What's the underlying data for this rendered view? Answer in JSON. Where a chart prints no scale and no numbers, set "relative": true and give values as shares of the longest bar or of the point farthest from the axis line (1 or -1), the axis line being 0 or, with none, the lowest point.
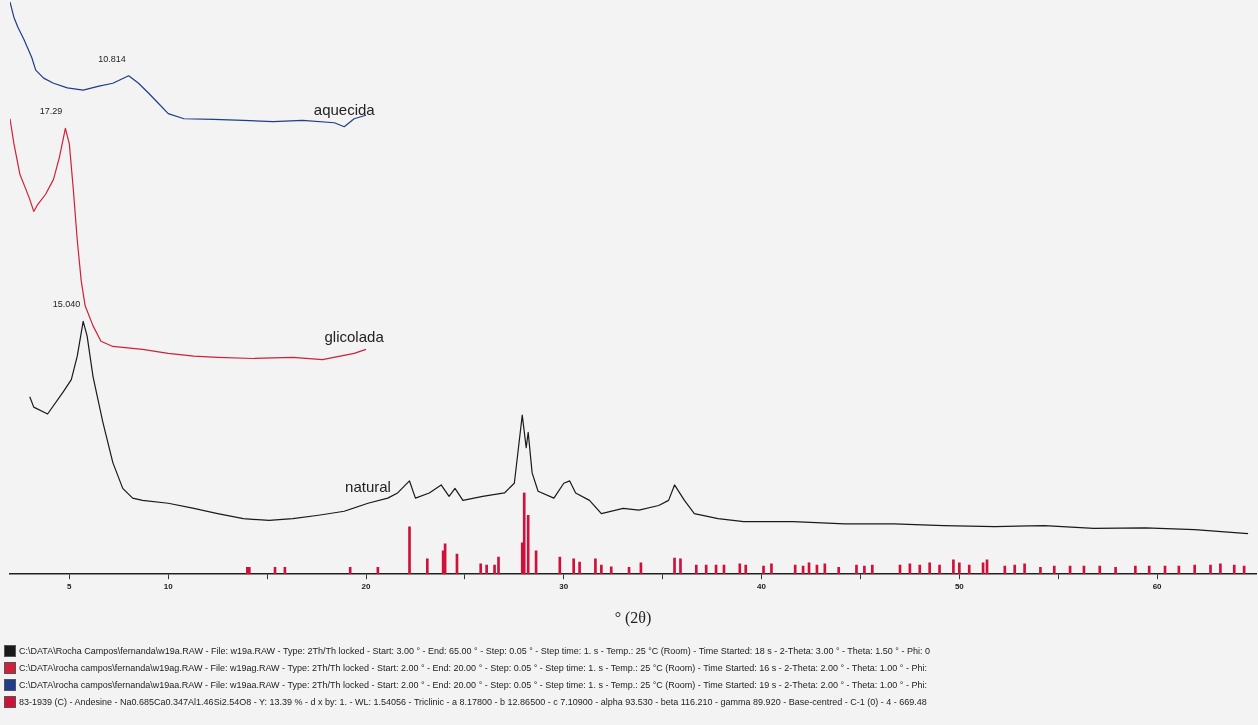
{
  "chart_data": {
    "type": "line",
    "relative": true,
    "xlabel": "° (2θ)",
    "xlim": [
      2,
      65
    ],
    "xticks": [
      5,
      10,
      {
        "value": 15,
        "label": null
      },
      20,
      {
        "value": 25,
        "label": null
      },
      30,
      {
        "value": 35,
        "label": null
      },
      40,
      {
        "value": 45,
        "label": null
      },
      50,
      {
        "value": 55,
        "label": null
      },
      60
    ],
    "grid": false,
    "legend": "bottom",
    "marker": "none",
    "line_style": "solid",
    "series": [
      {
        "name": "C:\\DATA\\Rocha Campos\\fernanda\\w19a.RAW - File: w19a.RAW - Type: 2Th/Th locked - Start: 3.00 ° - End: 65.00 ° - Step: 0.05 ° - Step time: 1. s - Temp.: 25 °C (Room) - Time Started: 18 s - 2-Theta: 3.00 ° - Theta: 1.50 ° - Phi: 0",
        "color": "#1a1a1a",
        "x": [
          3.0,
          3.2,
          3.9,
          4.7,
          5.1,
          5.4,
          5.7,
          5.9,
          6.2,
          6.7,
          7.2,
          7.7,
          8.2,
          8.7,
          10.0,
          11.3,
          12.5,
          13.8,
          15.1,
          16.3,
          17.6,
          18.9,
          20.1,
          21.1,
          21.6,
          22.2,
          22.5,
          23.2,
          23.8,
          24.2,
          24.5,
          24.9,
          25.9,
          27.0,
          27.5,
          27.8,
          27.9,
          28.1,
          28.2,
          28.4,
          28.7,
          29.5,
          30.0,
          30.3,
          30.6,
          31.3,
          31.9,
          33.0,
          33.8,
          34.8,
          35.3,
          35.6,
          36.1,
          36.6,
          37.8,
          39.1,
          41.6,
          44.2,
          46.7,
          49.2,
          51.8,
          54.3,
          56.8,
          59.4,
          61.9,
          64.6
        ],
        "values": [
          0.31,
          0.292,
          0.28,
          0.319,
          0.34,
          0.381,
          0.442,
          0.416,
          0.345,
          0.265,
          0.195,
          0.15,
          0.133,
          0.129,
          0.124,
          0.115,
          0.106,
          0.097,
          0.094,
          0.097,
          0.103,
          0.11,
          0.124,
          0.133,
          0.142,
          0.163,
          0.133,
          0.142,
          0.156,
          0.136,
          0.15,
          0.129,
          0.136,
          0.142,
          0.159,
          0.248,
          0.278,
          0.221,
          0.248,
          0.177,
          0.145,
          0.133,
          0.159,
          0.163,
          0.142,
          0.129,
          0.106,
          0.115,
          0.112,
          0.12,
          0.129,
          0.156,
          0.129,
          0.106,
          0.097,
          0.092,
          0.092,
          0.088,
          0.088,
          0.085,
          0.083,
          0.085,
          0.08,
          0.081,
          0.078,
          0.071
        ]
      },
      {
        "name": "C:\\DATA\\rocha campos\\fernanda\\w19ag.RAW - File: w19ag.RAW - Type: 2Th/Th locked - Start: 2.00 ° - End: 20.00 ° - Step: 0.05 ° - Step time: 1. s - Temp.: 25 °C (Room) - Time Started: 16 s - 2-Theta: 2.00 ° - Theta: 1.00 ° - Phi:",
        "color": "#d0203a",
        "x": [
          2.0,
          2.2,
          2.5,
          2.8,
          3.0,
          3.2,
          3.4,
          3.8,
          4.2,
          4.5,
          4.8,
          5.0,
          5.2,
          5.4,
          5.6,
          5.8,
          6.2,
          6.6,
          7.2,
          8.7,
          10.0,
          11.3,
          12.5,
          14.3,
          16.3,
          17.8,
          19.4,
          20.0
        ],
        "values": [
          0.796,
          0.752,
          0.699,
          0.673,
          0.655,
          0.634,
          0.646,
          0.664,
          0.69,
          0.729,
          0.779,
          0.752,
          0.673,
          0.584,
          0.513,
          0.469,
          0.434,
          0.407,
          0.398,
          0.393,
          0.386,
          0.381,
          0.379,
          0.377,
          0.379,
          0.375,
          0.386,
          0.393
        ]
      },
      {
        "name": "C:\\DATA\\rocha campos\\fernanda\\w19aa.RAW - File: w19aa.RAW - Type: 2Th/Th locked - Start: 2.00 ° - End: 20.00 ° - Step: 0.05 ° - Step time: 1. s - Temp.: 25 °C (Room) - Time Started: 19 s - 2-Theta: 2.00 ° - Theta: 1.00 ° - Phi:",
        "color": "#203c8c",
        "x": [
          2.0,
          2.2,
          2.4,
          2.7,
          3.1,
          3.3,
          3.7,
          4.2,
          4.9,
          5.7,
          6.5,
          7.2,
          8.0,
          8.5,
          9.0,
          9.5,
          10.0,
          10.8,
          12.3,
          13.8,
          15.3,
          16.8,
          18.4,
          18.9,
          19.4,
          20.0
        ],
        "values": [
          1.0,
          0.973,
          0.956,
          0.935,
          0.903,
          0.881,
          0.867,
          0.858,
          0.85,
          0.846,
          0.853,
          0.858,
          0.871,
          0.858,
          0.841,
          0.823,
          0.805,
          0.796,
          0.795,
          0.793,
          0.791,
          0.793,
          0.789,
          0.782,
          0.796,
          0.802
        ]
      },
      {
        "name": "83-1939 (C) - Andesine - Na0.685Ca0.347Al1.46Si2.54O8 - Y: 13.39 % - d x by: 1. - WL: 1.54056 - Triclinic - a 8.17800 - b 12.86500 - c 7.10900 - alpha 93.530 - beta 116.210 - gamma 89.920 - Base-centred - C-1 (0) - 4 - 669.48",
        "type": "bar",
        "color": "#d0103a",
        "x": [
          14.0,
          14.1,
          15.4,
          15.9,
          19.2,
          20.6,
          22.2,
          23.1,
          23.9,
          24.0,
          24.6,
          25.8,
          26.1,
          26.5,
          26.7,
          27.9,
          28.0,
          28.2,
          28.6,
          29.8,
          30.5,
          30.8,
          31.6,
          31.9,
          32.4,
          33.3,
          33.9,
          35.6,
          35.9,
          36.7,
          37.2,
          37.7,
          38.1,
          38.9,
          39.2,
          40.1,
          40.5,
          41.7,
          42.1,
          42.4,
          42.8,
          43.2,
          43.9,
          44.8,
          45.2,
          45.6,
          47.0,
          47.5,
          48.0,
          48.5,
          49.0,
          49.7,
          50.0,
          50.5,
          51.2,
          51.4,
          52.3,
          52.8,
          53.3,
          54.1,
          54.8,
          55.6,
          56.3,
          57.1,
          57.9,
          58.9,
          59.6,
          60.4,
          61.1,
          61.9,
          62.7,
          63.2,
          63.9,
          64.4
        ],
        "values": [
          0.012,
          0.012,
          0.012,
          0.012,
          0.012,
          0.012,
          0.083,
          0.027,
          0.041,
          0.053,
          0.035,
          0.018,
          0.016,
          0.016,
          0.03,
          0.055,
          0.142,
          0.103,
          0.041,
          0.03,
          0.027,
          0.021,
          0.027,
          0.016,
          0.013,
          0.012,
          0.02,
          0.028,
          0.027,
          0.016,
          0.016,
          0.016,
          0.016,
          0.018,
          0.016,
          0.014,
          0.018,
          0.016,
          0.014,
          0.02,
          0.016,
          0.018,
          0.012,
          0.016,
          0.014,
          0.016,
          0.016,
          0.018,
          0.016,
          0.02,
          0.016,
          0.025,
          0.02,
          0.016,
          0.02,
          0.025,
          0.014,
          0.016,
          0.018,
          0.012,
          0.014,
          0.014,
          0.014,
          0.014,
          0.012,
          0.014,
          0.014,
          0.014,
          0.014,
          0.016,
          0.016,
          0.018,
          0.016,
          0.014
        ]
      }
    ],
    "annotations": [
      {
        "text": "aquecida",
        "x": 18.9,
        "y": 0.782
      },
      {
        "text": "glicolada",
        "x": 19.4,
        "y": 0.386
      },
      {
        "text": "natural",
        "x": 20.1,
        "y": 0.124
      },
      {
        "text": "10.814",
        "x": 8.0,
        "y": 0.871
      },
      {
        "text": "17.29",
        "x": 4.8,
        "y": 0.779
      },
      {
        "text": "15.040",
        "x": 5.7,
        "y": 0.442
      }
    ]
  }
}
